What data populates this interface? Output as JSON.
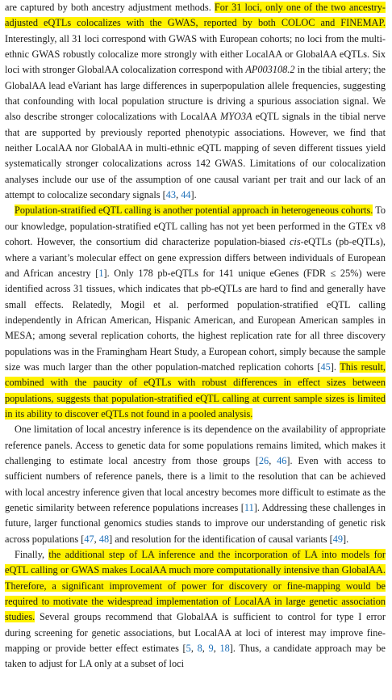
{
  "paragraphs": [
    {
      "indent": false,
      "runs": [
        {
          "t": "are captured by both ancestry adjustment methods. "
        },
        {
          "t": "For 31 loci, only one of the two ancestry-adjusted eQTLs colocalizes with the GWAS, reported by both COLOC and FINEMAP.",
          "hl": true
        },
        {
          "t": " Interestingly, all 31 loci correspond with GWAS with European cohorts; no loci from the multi-ethnic GWAS robustly colocalize more strongly with either LocalAA or GlobalAA eQTLs. Six loci with stronger GlobalAA colocalization correspond with "
        },
        {
          "t": "AP003108.2",
          "i": true
        },
        {
          "t": " in the tibial artery; the GlobalAA lead eVariant has large differences in superpopulation allele frequencies, suggesting that confounding with local population structure is driving a spurious association signal. We also describe stronger colocalizations with LocalAA "
        },
        {
          "t": "MYO3A",
          "i": true
        },
        {
          "t": " eQTL signals in the tibial nerve that are supported by previously reported phenotypic associations. However, we find that neither LocalAA nor GlobalAA in multi-ethnic eQTL mapping of seven different tissues yield systematically stronger colocalizations across 142 GWAS. Limitations of our colocalization analyses include our use of the assumption of one causal variant per trait and our lack of an attempt to colocalize secondary signals ["
        },
        {
          "t": "43",
          "ref": true
        },
        {
          "t": ", "
        },
        {
          "t": "44",
          "ref": true
        },
        {
          "t": "]."
        }
      ]
    },
    {
      "indent": true,
      "runs": [
        {
          "t": "Population-stratified eQTL calling is another potential approach in heterogeneous cohorts.",
          "hl": true
        },
        {
          "t": " To our knowledge, population-stratified eQTL calling has not yet been performed in the GTEx v8 cohort. However, the consortium did characterize population-biased "
        },
        {
          "t": "cis",
          "i": true
        },
        {
          "t": "-eQTLs (pb-eQTLs), where a variant’s molecular effect on gene expression differs between individuals of European and African ancestry ["
        },
        {
          "t": "1",
          "ref": true
        },
        {
          "t": "]. Only 178 pb-eQTLs for 141 unique eGenes (FDR ≤ 25%) were identified across 31 tissues, which indicates that pb-eQTLs are hard to find and generally have small effects. Relatedly, Mogil et al. performed population-stratified eQTL calling independently in African American, Hispanic American, and European American samples in MESA; among several replication cohorts, the highest replication rate for all three discovery populations was in the Framingham Heart Study, a European cohort, simply because the sample size was much larger than the other population-matched replication cohorts ["
        },
        {
          "t": "45",
          "ref": true
        },
        {
          "t": "]. "
        },
        {
          "t": "This result, combined with the paucity of eQTLs with robust differences in effect sizes between populations, suggests that population-stratified eQTL calling at current sample sizes is limited in its ability to discover eQTLs not found in a pooled analysis.",
          "hl": true
        }
      ]
    },
    {
      "indent": true,
      "runs": [
        {
          "t": "One limitation of local ancestry inference is its dependence on the availability of appropriate reference panels. Access to genetic data for some populations remains limited, which makes it challenging to estimate local ancestry from those groups ["
        },
        {
          "t": "26",
          "ref": true
        },
        {
          "t": ", "
        },
        {
          "t": "46",
          "ref": true
        },
        {
          "t": "]. Even with access to sufficient numbers of reference panels, there is a limit to the resolution that can be achieved with local ancestry inference given that local ancestry becomes more difficult to estimate as the genetic similarity between reference populations increases ["
        },
        {
          "t": "11",
          "ref": true
        },
        {
          "t": "]. Addressing these challenges in future, larger functional genomics studies stands to improve our understanding of genetic risk across populations ["
        },
        {
          "t": "47",
          "ref": true
        },
        {
          "t": ", "
        },
        {
          "t": "48",
          "ref": true
        },
        {
          "t": "] and resolution for the identification of causal variants ["
        },
        {
          "t": "49",
          "ref": true
        },
        {
          "t": "]."
        }
      ]
    },
    {
      "indent": true,
      "runs": [
        {
          "t": "Finally, "
        },
        {
          "t": "the additional step of LA inference and the incorporation of LA into models for eQTL calling or GWAS makes LocalAA much more computationally intensive than GlobalAA. Therefore, a significant improvement of power for discovery or fine-mapping would be required to motivate the widespread implementation of LocalAA in large genetic association studies.",
          "hl": true
        },
        {
          "t": " Several groups recommend that GlobalAA is sufficient to control for type I error during screening for genetic associations, but LocalAA at loci of interest may improve fine-mapping or provide better effect estimates ["
        },
        {
          "t": "5",
          "ref": true
        },
        {
          "t": ", "
        },
        {
          "t": "8",
          "ref": true
        },
        {
          "t": ", "
        },
        {
          "t": "9",
          "ref": true
        },
        {
          "t": ", "
        },
        {
          "t": "18",
          "ref": true
        },
        {
          "t": "]. Thus, a candidate approach may be taken to adjust for LA only at a subset of loci"
        }
      ]
    }
  ]
}
